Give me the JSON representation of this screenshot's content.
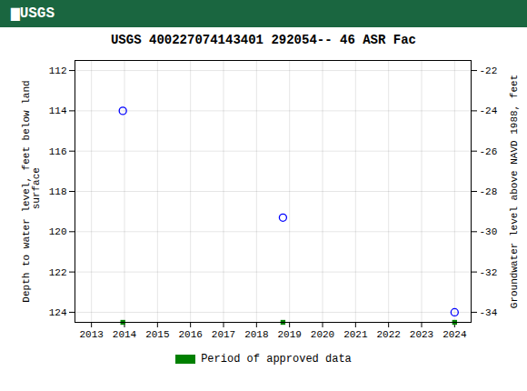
{
  "chart_data": {
    "type": "scatter",
    "title": "USGS 400227074143401 292054-- 46 ASR Fac",
    "annotations": [
      "▆USGS"
    ],
    "ylabel": "Depth to water level, feet below land\n surface",
    "y2label": "Groundwater level above NAVD 1988, feet",
    "x": [
      2013.95,
      2018.8,
      2024.0
    ],
    "series": [
      {
        "color": "#0000ff",
        "marker": "circle",
        "values": [
          114.0,
          119.3,
          124.0
        ]
      },
      {
        "name": "Period of approved data",
        "color": "#008000",
        "marker": "square",
        "values": [
          124.5,
          124.5,
          124.5
        ]
      }
    ],
    "xlim": [
      2012.5,
      2024.5
    ],
    "xticks": [
      2013,
      2014,
      2015,
      2016,
      2017,
      2018,
      2019,
      2020,
      2021,
      2022,
      2023,
      2024
    ],
    "ylim": [
      124.5,
      111.5
    ],
    "yticks": [
      112,
      114,
      116,
      118,
      120,
      122,
      124
    ],
    "y2lim": [
      -34.5,
      -21.5
    ],
    "y2ticks": [
      -22,
      -24,
      -26,
      -28,
      -30,
      -32,
      -34
    ],
    "grid": true,
    "legend": "bottom"
  }
}
